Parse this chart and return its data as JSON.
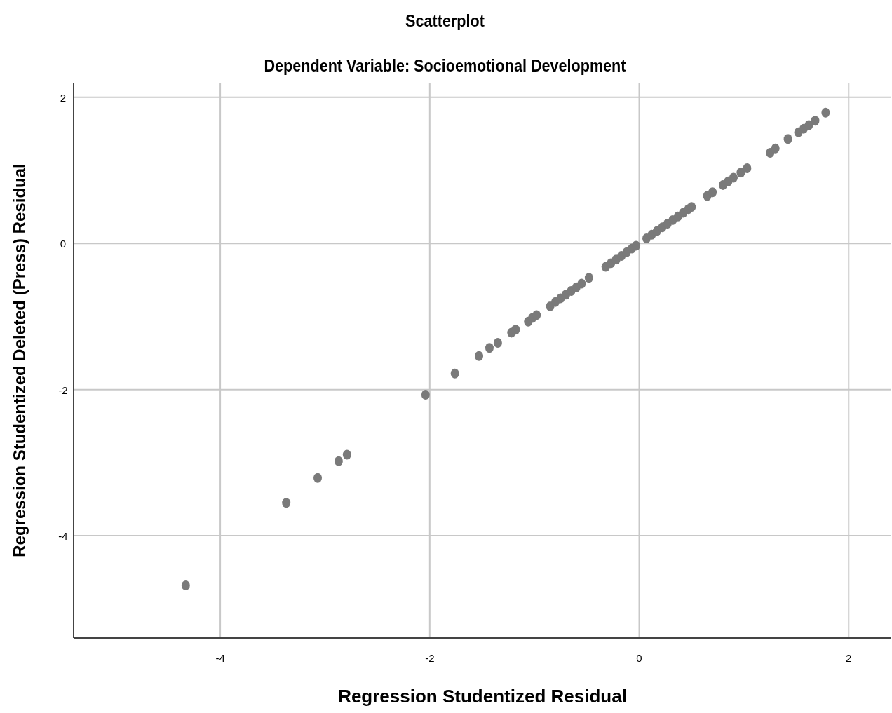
{
  "chart_data": {
    "type": "scatter",
    "title": "Scatterplot",
    "subtitle": "Dependent Variable: Socioemotional Development",
    "xlabel": "Regression Studentized Residual",
    "ylabel": "Regression Studentized Deleted (Press) Residual",
    "xlim": [
      -5.4,
      2.4
    ],
    "ylim": [
      -5.4,
      2.2
    ],
    "xticks": [
      -4,
      -2,
      0,
      2
    ],
    "yticks": [
      -4,
      -2,
      0,
      2
    ],
    "grid": true,
    "marker": "circle",
    "series": [
      {
        "color": "#7a7a7a",
        "x": [
          -4.33,
          -3.37,
          -3.07,
          -2.87,
          -2.79,
          -2.04,
          -1.76,
          -1.53,
          -1.43,
          -1.35,
          -1.22,
          -1.18,
          -1.06,
          -1.02,
          -0.98,
          -0.85,
          -0.8,
          -0.75,
          -0.7,
          -0.65,
          -0.6,
          -0.55,
          -0.48,
          -0.32,
          -0.27,
          -0.22,
          -0.17,
          -0.12,
          -0.07,
          -0.03,
          0.07,
          0.12,
          0.17,
          0.22,
          0.27,
          0.32,
          0.37,
          0.42,
          0.47,
          0.5,
          0.65,
          0.7,
          0.8,
          0.85,
          0.9,
          0.97,
          1.03,
          1.25,
          1.3,
          1.42,
          1.52,
          1.57,
          1.62,
          1.68,
          1.78
        ],
        "values": [
          -4.68,
          -3.55,
          -3.21,
          -2.98,
          -2.89,
          -2.07,
          -1.78,
          -1.54,
          -1.43,
          -1.36,
          -1.22,
          -1.18,
          -1.07,
          -1.02,
          -0.98,
          -0.86,
          -0.8,
          -0.75,
          -0.7,
          -0.65,
          -0.6,
          -0.55,
          -0.47,
          -0.32,
          -0.27,
          -0.22,
          -0.17,
          -0.12,
          -0.07,
          -0.03,
          0.07,
          0.12,
          0.17,
          0.22,
          0.27,
          0.32,
          0.37,
          0.42,
          0.47,
          0.5,
          0.65,
          0.7,
          0.8,
          0.85,
          0.9,
          0.97,
          1.03,
          1.24,
          1.3,
          1.43,
          1.52,
          1.57,
          1.62,
          1.68,
          1.79
        ]
      }
    ]
  }
}
